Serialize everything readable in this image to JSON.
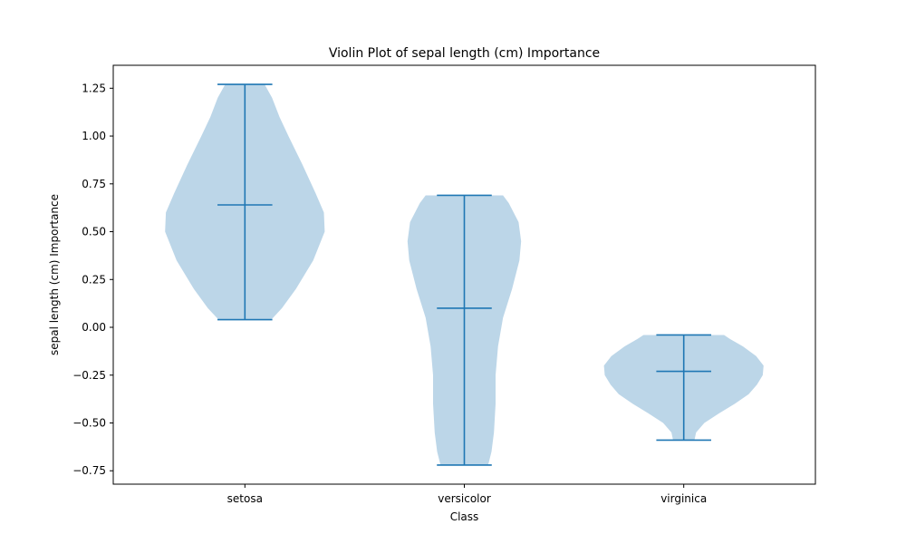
{
  "chart_data": {
    "type": "violin",
    "title": "Violin Plot of sepal length (cm) Importance",
    "xlabel": "Class",
    "ylabel": "sepal length (cm) Importance",
    "categories": [
      "setosa",
      "versicolor",
      "virginica"
    ],
    "ylim": [
      -0.82,
      1.37
    ],
    "yticks": [
      -0.75,
      -0.5,
      -0.25,
      0.0,
      0.25,
      0.5,
      0.75,
      1.0,
      1.25
    ],
    "ytick_labels": [
      "−0.75",
      "−0.50",
      "−0.25",
      "0.00",
      "0.25",
      "0.50",
      "0.75",
      "1.00",
      "1.25"
    ],
    "grid": false,
    "colors": {
      "body": "#a6c8e0",
      "lines": "#1f77b4"
    },
    "violins": [
      {
        "category": "setosa",
        "min": 0.04,
        "max": 1.27,
        "median": 0.64,
        "profile": [
          [
            0.04,
            0.32
          ],
          [
            0.1,
            0.45
          ],
          [
            0.2,
            0.62
          ],
          [
            0.35,
            0.83
          ],
          [
            0.5,
            0.97
          ],
          [
            0.6,
            0.96
          ],
          [
            0.7,
            0.86
          ],
          [
            0.85,
            0.7
          ],
          [
            1.0,
            0.53
          ],
          [
            1.1,
            0.42
          ],
          [
            1.2,
            0.33
          ],
          [
            1.27,
            0.24
          ]
        ]
      },
      {
        "category": "versicolor",
        "min": -0.72,
        "max": 0.69,
        "median": 0.1,
        "profile": [
          [
            -0.72,
            0.29
          ],
          [
            -0.65,
            0.33
          ],
          [
            -0.55,
            0.36
          ],
          [
            -0.4,
            0.38
          ],
          [
            -0.25,
            0.38
          ],
          [
            -0.1,
            0.41
          ],
          [
            0.05,
            0.47
          ],
          [
            0.2,
            0.58
          ],
          [
            0.35,
            0.67
          ],
          [
            0.45,
            0.69
          ],
          [
            0.55,
            0.66
          ],
          [
            0.65,
            0.54
          ],
          [
            0.69,
            0.47
          ]
        ]
      },
      {
        "category": "virginica",
        "min": -0.59,
        "max": -0.04,
        "median": -0.23,
        "profile": [
          [
            -0.59,
            0.13
          ],
          [
            -0.55,
            0.15
          ],
          [
            -0.5,
            0.25
          ],
          [
            -0.45,
            0.43
          ],
          [
            -0.4,
            0.62
          ],
          [
            -0.35,
            0.79
          ],
          [
            -0.3,
            0.89
          ],
          [
            -0.25,
            0.96
          ],
          [
            -0.2,
            0.97
          ],
          [
            -0.15,
            0.88
          ],
          [
            -0.1,
            0.72
          ],
          [
            -0.06,
            0.56
          ],
          [
            -0.04,
            0.49
          ]
        ]
      }
    ]
  }
}
